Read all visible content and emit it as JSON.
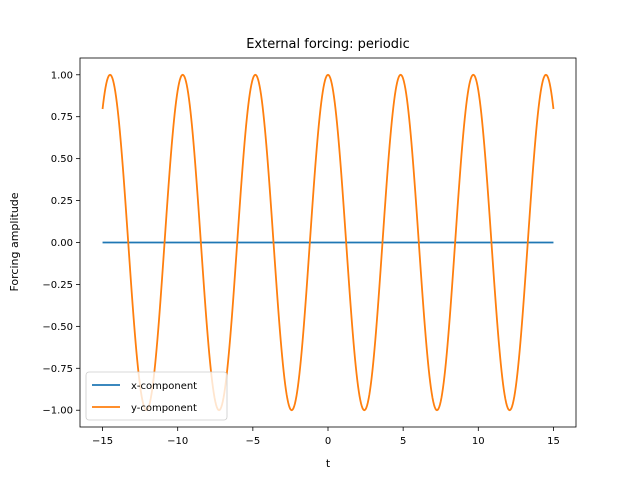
{
  "chart_data": {
    "type": "line",
    "title": "External forcing: periodic",
    "xlabel": "t",
    "ylabel": "Forcing amplitude",
    "xlim": [
      -16.5,
      16.5
    ],
    "ylim": [
      -1.1,
      1.1
    ],
    "xticks": [
      -15,
      -10,
      -5,
      0,
      5,
      10,
      15
    ],
    "yticks": [
      -1.0,
      -0.75,
      -0.5,
      -0.25,
      0.0,
      0.25,
      0.5,
      0.75,
      1.0
    ],
    "xtick_labels": [
      "−15",
      "−10",
      "−5",
      "0",
      "5",
      "10",
      "15"
    ],
    "ytick_labels": [
      "−1.00",
      "−0.75",
      "−0.50",
      "−0.25",
      "0.00",
      "0.25",
      "0.50",
      "0.75",
      "1.00"
    ],
    "grid": false,
    "legend_position": "lower-left",
    "x_range": [
      -15,
      15
    ],
    "series": [
      {
        "name": "x-component",
        "color": "#1f77b4",
        "function": "0"
      },
      {
        "name": "y-component",
        "color": "#ff7f0e",
        "function": "cos(1.3*t)",
        "angular_frequency": 1.3,
        "amplitude": 1.0
      }
    ]
  }
}
